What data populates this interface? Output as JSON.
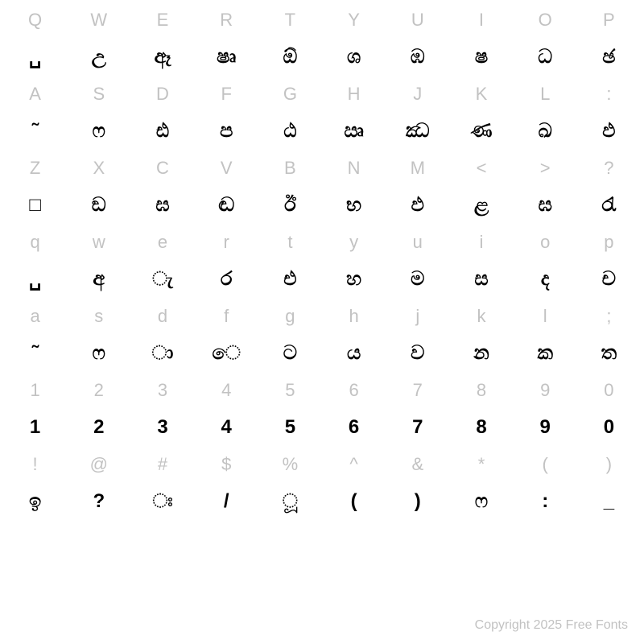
{
  "chart": {
    "type": "glyph-map-table",
    "columns": 10,
    "background_color": "#ffffff",
    "ref_color": "#c2c2c2",
    "glyph_color": "#000000",
    "ref_fontsize": 22,
    "glyph_fontsize": 24,
    "glyph_fontweight": 700,
    "rows": [
      {
        "kind": "ref",
        "cells": [
          "Q",
          "W",
          "E",
          "R",
          "T",
          "Y",
          "U",
          "I",
          "O",
          "P"
        ]
      },
      {
        "kind": "glyph",
        "cells": [
          "␣",
          "උ",
          "ඈ",
          "ෂෘ",
          "ඕ",
          "ශ",
          "ඹ",
          "ෂ",
          "ධ",
          "ඡ"
        ]
      },
      {
        "kind": "ref",
        "cells": [
          "A",
          "S",
          "D",
          "F",
          "G",
          "H",
          "J",
          "K",
          "L",
          ":"
        ]
      },
      {
        "kind": "glyph",
        "cells": [
          "˜",
          "ෆ",
          "ඪ",
          "ප",
          "ඨ",
          "ඍ",
          "ඣ",
          "ණ",
          "ඛ",
          "ඵ"
        ]
      },
      {
        "kind": "ref",
        "cells": [
          "Z",
          "X",
          "C",
          "V",
          "B",
          "N",
          "M",
          "<",
          ">",
          "?"
        ]
      },
      {
        "kind": "glyph",
        "cells": [
          "□",
          "ඞ",
          "ඝ",
          "ඬ",
          "ඊ",
          "භ",
          "ඵ",
          "ළ",
          "ඝ",
          "රැ"
        ]
      },
      {
        "kind": "ref",
        "cells": [
          "q",
          "w",
          "e",
          "r",
          "t",
          "y",
          "u",
          "i",
          "o",
          "p"
        ]
      },
      {
        "kind": "glyph",
        "cells": [
          "␣",
          "අ",
          "ැ",
          "ර",
          "එ",
          "හ",
          "ම",
          "ස",
          "ද",
          "ච"
        ]
      },
      {
        "kind": "ref",
        "cells": [
          "a",
          "s",
          "d",
          "f",
          "g",
          "h",
          "j",
          "k",
          "l",
          ";"
        ]
      },
      {
        "kind": "glyph",
        "cells": [
          "˜",
          "ෆ",
          "ා",
          "ෙ",
          "ට",
          "ය",
          "ව",
          "න",
          "ක",
          "ත"
        ]
      },
      {
        "kind": "ref",
        "cells": [
          "1",
          "2",
          "3",
          "4",
          "5",
          "6",
          "7",
          "8",
          "9",
          "0"
        ]
      },
      {
        "kind": "glyph",
        "cells": [
          "1",
          "2",
          "3",
          "4",
          "5",
          "6",
          "7",
          "8",
          "9",
          "0"
        ]
      },
      {
        "kind": "ref",
        "cells": [
          "!",
          "@",
          "#",
          "$",
          "%",
          "^",
          "&",
          "*",
          "(",
          ")"
        ]
      },
      {
        "kind": "glyph",
        "cells": [
          "ඉ",
          "?",
          "ඃ",
          "/",
          "ූ",
          "(",
          ")",
          "ෆ",
          ":",
          "_"
        ]
      }
    ]
  },
  "footer": {
    "text": "Copyright 2025 Free Fonts"
  }
}
